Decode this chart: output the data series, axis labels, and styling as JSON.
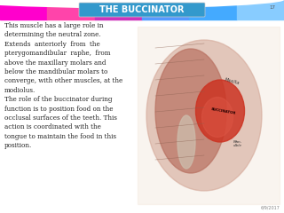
{
  "title": "THE BUCCINATOR",
  "title_bg_color": "#3399cc",
  "title_text_color": "white",
  "title_fontsize": 7,
  "slide_number": "17",
  "date_text": "6/9/2017",
  "body_text": "This muscle has a large role in\ndetermining the neutral zone.\nExtends  anteriorly  from  the\npterygomandibular  raphe,  from\nabove the maxillary molars and\nbelow the mandibular molars to\nconverge, with other muscles, at the\nmodiolus.\nThe role of the buccinator during\nfunction is to position food on the\nocclusal surfaces of the teeth. This\naction is coordinated with the\ntongue to maintain the food in this\nposition.",
  "body_text_color": "#222222",
  "body_fontsize": 5.2,
  "bg_top_colors": [
    "#ff00ff",
    "#ff6699",
    "#cc44cc",
    "#3399ff",
    "#66ccff"
  ],
  "bg_color": "#f0f0f0",
  "slide_bg": "white"
}
